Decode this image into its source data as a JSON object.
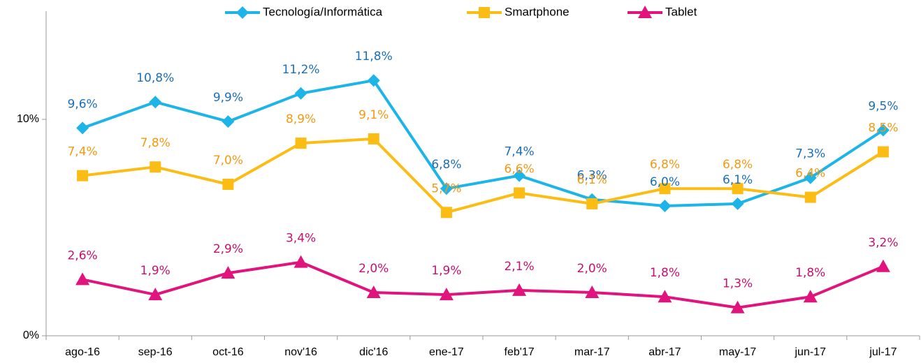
{
  "chart_data": {
    "type": "line",
    "categories": [
      "ago-16",
      "sep-16",
      "oct-16",
      "nov'16",
      "dic'16",
      "ene-17",
      "feb'17",
      "mar-17",
      "abr-17",
      "may-17",
      "jun-17",
      "jul-17"
    ],
    "series": [
      {
        "name": "Tecnología/Informática",
        "color": "#1db4e8",
        "label_color": "#1b6fb8",
        "marker": "diamond",
        "values": [
          9.6,
          10.8,
          9.9,
          11.2,
          11.8,
          6.8,
          7.4,
          6.3,
          6.0,
          6.1,
          7.3,
          9.5
        ],
        "value_labels": [
          "9,6%",
          "10,8%",
          "9,9%",
          "11,2%",
          "11,8%",
          "6,8%",
          "7,4%",
          "6,3%",
          "6,0%",
          "6,1%",
          "7,3%",
          "9,5%"
        ]
      },
      {
        "name": "Smartphone",
        "color": "#fbbc14",
        "label_color": "#f39a12",
        "marker": "square",
        "values": [
          7.4,
          7.8,
          7.0,
          8.9,
          9.1,
          5.7,
          6.6,
          6.1,
          6.8,
          6.8,
          6.4,
          8.5
        ],
        "value_labels": [
          "7,4%",
          "7,8%",
          "7,0%",
          "8,9%",
          "9,1%",
          "5,7%",
          "6,6%",
          "6,1%",
          "6,8%",
          "6,8%",
          "6,4%",
          "8,5%"
        ]
      },
      {
        "name": "Tablet",
        "color": "#e0147c",
        "label_color": "#c8106e",
        "marker": "triangle",
        "values": [
          2.6,
          1.9,
          2.9,
          3.4,
          2.0,
          1.9,
          2.1,
          2.0,
          1.8,
          1.3,
          1.8,
          3.2
        ],
        "value_labels": [
          "2,6%",
          "1,9%",
          "2,9%",
          "3,4%",
          "2,0%",
          "1,9%",
          "2,1%",
          "2,0%",
          "1,8%",
          "1,3%",
          "1,8%",
          "3,2%"
        ]
      }
    ],
    "ylim": [
      0,
      15
    ],
    "yticks": [
      {
        "value": 0,
        "label": "0%"
      },
      {
        "value": 10,
        "label": "10%"
      }
    ],
    "grid": false,
    "legend": "top"
  }
}
